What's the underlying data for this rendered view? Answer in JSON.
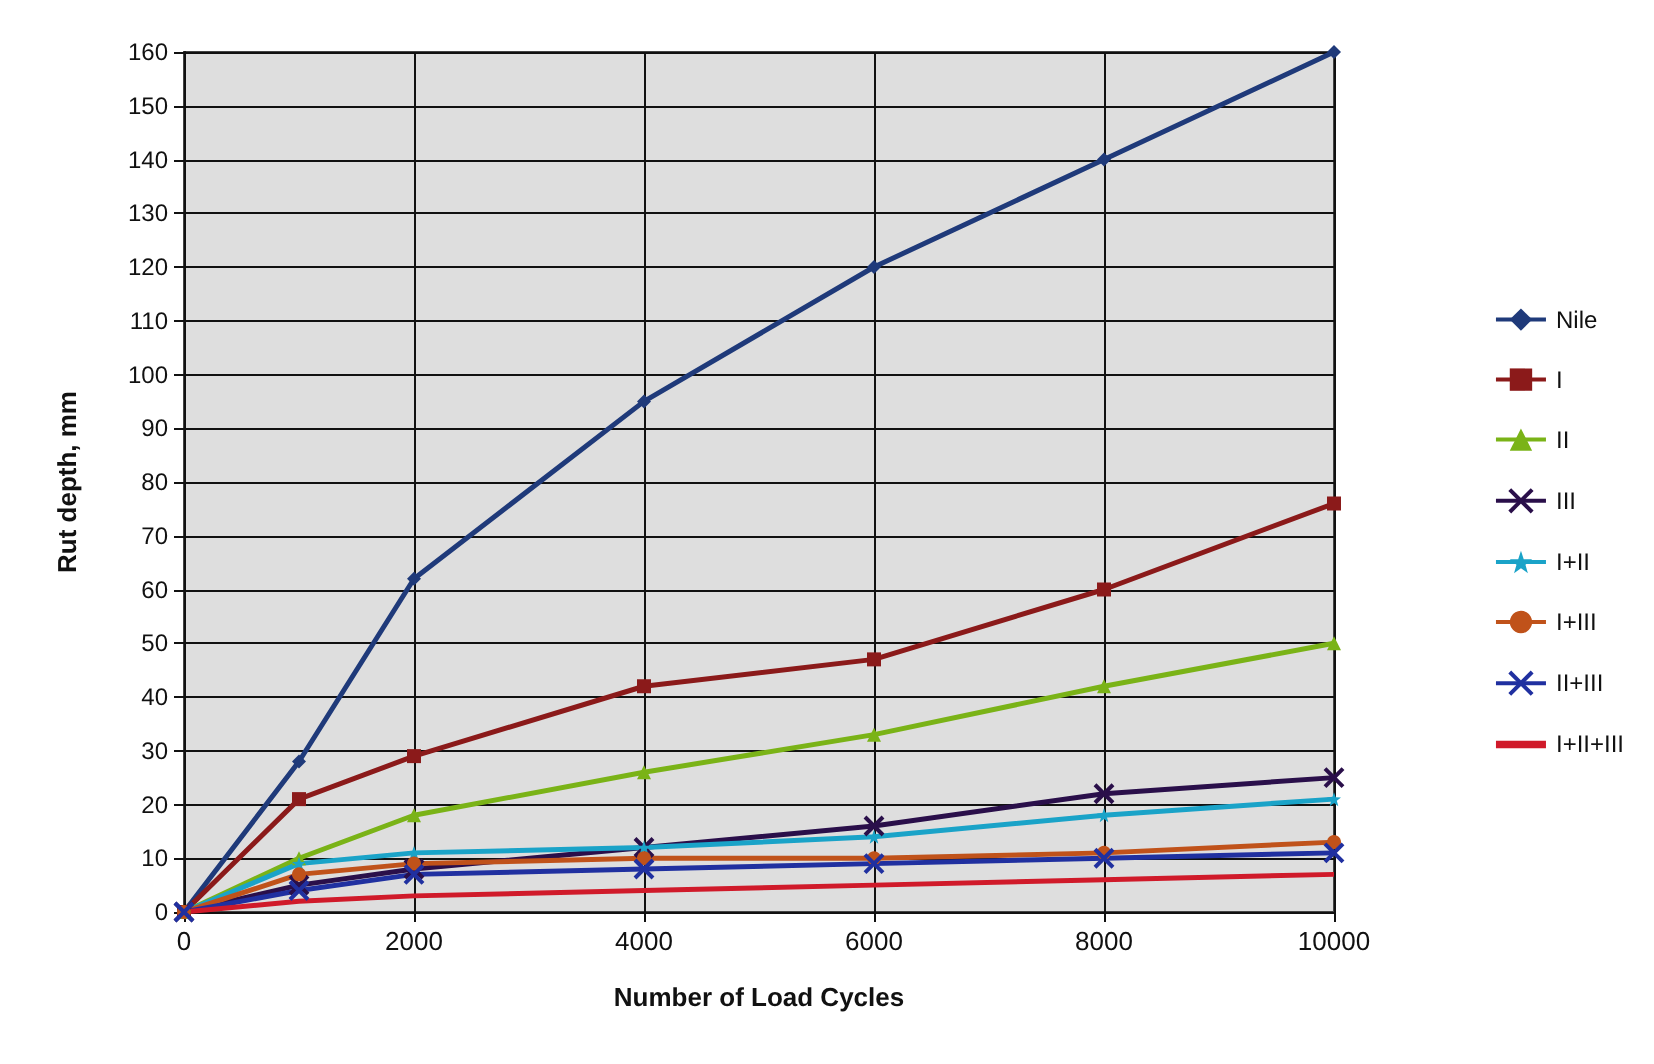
{
  "chart_data": {
    "type": "line",
    "xlabel": "Number of Load Cycles",
    "ylabel": "Rut depth, mm",
    "x": [
      0,
      1000,
      2000,
      4000,
      6000,
      8000,
      10000
    ],
    "xlim": [
      0,
      10000
    ],
    "xticks": [
      0,
      2000,
      4000,
      6000,
      8000,
      10000
    ],
    "ylim": [
      0,
      160
    ],
    "yticks": [
      0,
      10,
      20,
      30,
      40,
      50,
      60,
      70,
      80,
      90,
      100,
      110,
      120,
      130,
      140,
      150,
      160
    ],
    "grid": true,
    "legend": "right",
    "series": [
      {
        "name": "Nile",
        "color": "#1f3a7a",
        "marker": "diamond",
        "values": [
          0,
          28,
          62,
          95,
          120,
          140,
          160
        ]
      },
      {
        "name": "I",
        "color": "#8b1a1a",
        "marker": "square",
        "values": [
          0,
          21,
          29,
          42,
          47,
          60,
          76
        ]
      },
      {
        "name": "II",
        "color": "#7ab317",
        "marker": "triangle",
        "values": [
          0,
          10,
          18,
          26,
          33,
          42,
          50
        ]
      },
      {
        "name": "III",
        "color": "#2a0f4a",
        "marker": "cross",
        "values": [
          0,
          5,
          8,
          12,
          16,
          22,
          25
        ]
      },
      {
        "name": "I+II",
        "color": "#1aa3c8",
        "marker": "star",
        "values": [
          0,
          9,
          11,
          12,
          14,
          18,
          21
        ]
      },
      {
        "name": "I+III",
        "color": "#c0521a",
        "marker": "circle",
        "values": [
          0,
          7,
          9,
          10,
          10,
          11,
          13
        ]
      },
      {
        "name": "II+III",
        "color": "#2030a0",
        "marker": "cross",
        "values": [
          0,
          4,
          7,
          8,
          9,
          10,
          11
        ]
      },
      {
        "name": "I+II+III",
        "color": "#d01a2a",
        "marker": "none",
        "values": [
          0,
          2,
          3,
          4,
          5,
          6,
          7
        ]
      }
    ]
  }
}
